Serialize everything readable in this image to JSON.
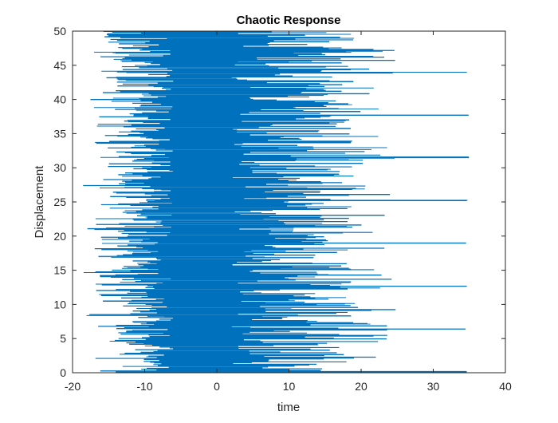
{
  "chart_data": {
    "type": "line",
    "title": "Chaotic Response",
    "xlabel": "time",
    "ylabel": "Displacement",
    "xlim": [
      -20,
      40
    ],
    "ylim": [
      0,
      50
    ],
    "xticks": [
      -20,
      -10,
      0,
      10,
      20,
      30,
      40
    ],
    "yticks": [
      0,
      5,
      10,
      15,
      20,
      25,
      30,
      35,
      40,
      45,
      50
    ],
    "xtick_labels": [
      "-20",
      "-10",
      "0",
      "10",
      "20",
      "30",
      "40"
    ],
    "ytick_labels": [
      "0",
      "5",
      "10",
      "15",
      "20",
      "25",
      "30",
      "35",
      "40",
      "45",
      "50"
    ],
    "grid": false,
    "series": [
      {
        "color": "#0072bd",
        "structure": "dense back-and-forth horizontal traces; x swings between about -18 and 35 while y climbs from 0 to 50",
        "envelope_x": [
          -18,
          35
        ],
        "y_range": [
          0,
          50
        ],
        "long_right_excursions_y": [
          0.1,
          6.3,
          12.6,
          18.9,
          25.2,
          31.5,
          37.7,
          44.0
        ],
        "long_right_excursion_x": 35,
        "long_left_excursions_y": [
          2.1,
          8.4,
          14.7,
          21.0,
          27.3,
          33.6,
          39.9,
          46.2
        ],
        "long_left_excursion_x": -18.5
      }
    ]
  }
}
